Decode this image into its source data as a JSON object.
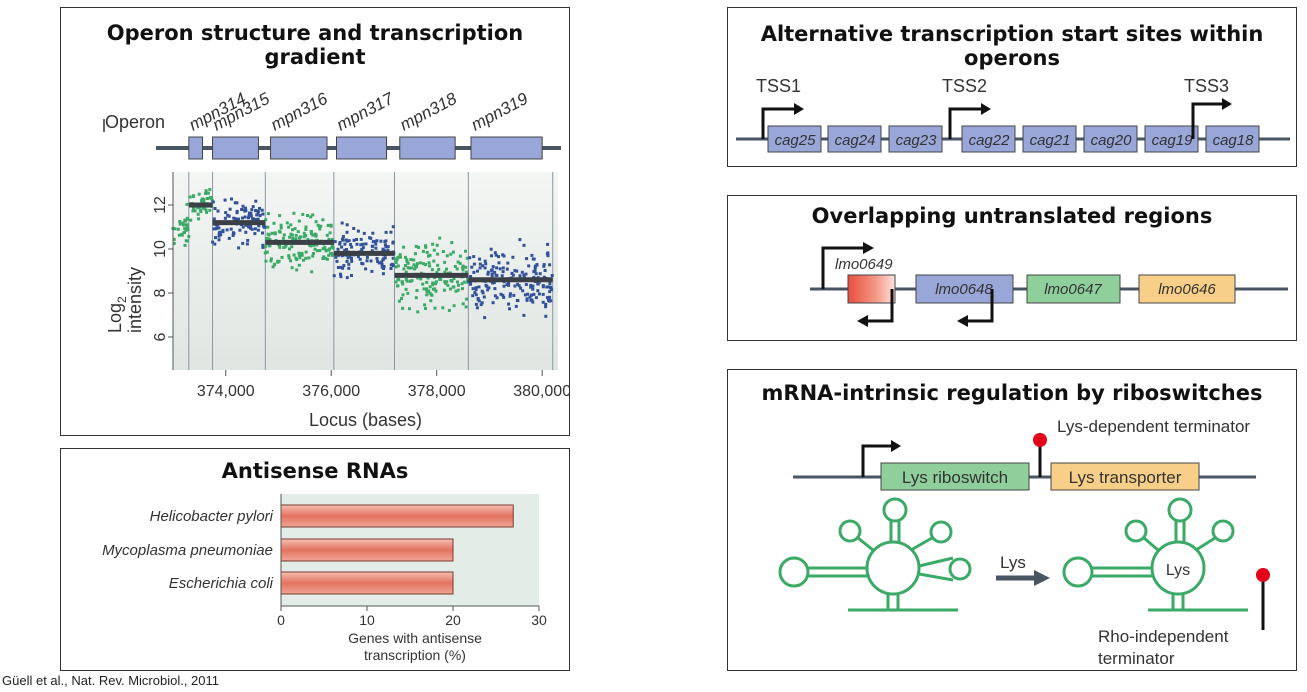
{
  "colors": {
    "gene_blue": "#99a6d8",
    "green_point": "#3aaa66",
    "blue_point": "#33519a",
    "terminator_red": "#e3001b",
    "rna_green": "#3aaa66",
    "bar_red": "#e37260",
    "gene_green": "#8fcf9b",
    "gene_orange": "#f7cf88",
    "lmo0649_red": "#e94d3e"
  },
  "operon_panel": {
    "title": "Operon structure and transcription gradient",
    "operon_label": "Operon",
    "genes": [
      "mpn314",
      "mpn315",
      "mpn316",
      "mpn317",
      "mpn318",
      "mpn319"
    ],
    "chart_data": {
      "type": "scatter",
      "xlabel": "Locus (bases)",
      "ylabel_main": "Log",
      "ylabel_sub": "2",
      "ylabel_line2": "intensity",
      "xlim": [
        373000,
        380300
      ],
      "ylim": [
        4.5,
        13.5
      ],
      "x_ticks": [
        374000,
        376000,
        378000,
        380000
      ],
      "x_tick_labels": [
        "374,000",
        "376,000",
        "378,000",
        "380,000"
      ],
      "y_ticks": [
        6,
        8,
        10,
        12
      ],
      "y_tick_labels": [
        "6",
        "8",
        "10",
        "12"
      ],
      "segment_means": [
        {
          "x_start": 373300,
          "x_end": 373750,
          "y": 12.0
        },
        {
          "x_start": 373750,
          "x_end": 374750,
          "y": 11.2
        },
        {
          "x_start": 374750,
          "x_end": 376050,
          "y": 10.3
        },
        {
          "x_start": 376050,
          "x_end": 377200,
          "y": 9.8
        },
        {
          "x_start": 377200,
          "x_end": 378600,
          "y": 8.8
        },
        {
          "x_start": 378600,
          "x_end": 380200,
          "y": 8.6
        }
      ],
      "boundaries": [
        373300,
        373750,
        374750,
        376050,
        377200,
        378600,
        380200
      ],
      "point_groups": [
        {
          "x_start": 373000,
          "x_end": 373300,
          "mean": 11.0,
          "spread": 1.3,
          "color": "green",
          "n": 30
        },
        {
          "x_start": 373300,
          "x_end": 373750,
          "mean": 12.0,
          "spread": 0.8,
          "color": "green",
          "n": 45
        },
        {
          "x_start": 373750,
          "x_end": 374750,
          "mean": 11.2,
          "spread": 1.4,
          "color": "blue",
          "n": 110
        },
        {
          "x_start": 374750,
          "x_end": 376050,
          "mean": 10.3,
          "spread": 1.6,
          "color": "green",
          "n": 150
        },
        {
          "x_start": 376050,
          "x_end": 377200,
          "mean": 9.8,
          "spread": 1.6,
          "color": "blue",
          "n": 130
        },
        {
          "x_start": 377200,
          "x_end": 378600,
          "mean": 8.8,
          "spread": 2.2,
          "color": "green",
          "n": 170
        },
        {
          "x_start": 378600,
          "x_end": 380200,
          "mean": 8.6,
          "spread": 2.0,
          "color": "blue",
          "n": 190
        }
      ]
    }
  },
  "antisense_panel": {
    "title": "Antisense RNAs",
    "chart_data": {
      "type": "bar",
      "orientation": "horizontal",
      "categories": [
        "Helicobacter pylori",
        "Mycoplasma pneumoniae",
        "Escherichia coli"
      ],
      "values": [
        27,
        20,
        20
      ],
      "xlim": [
        0,
        30
      ],
      "x_ticks": [
        0,
        10,
        20,
        30
      ],
      "xlabel_line1": "Genes with antisense",
      "xlabel_line2": "transcription (%)"
    }
  },
  "tss_panel": {
    "title": "Alternative transcription start sites within operons",
    "tss_labels": [
      "TSS1",
      "TSS2",
      "TSS3"
    ],
    "genes": [
      "cag25",
      "cag24",
      "cag23",
      "cag22",
      "cag21",
      "cag20",
      "cag19",
      "cag18"
    ]
  },
  "utr_panel": {
    "title": "Overlapping untranslated regions",
    "genes": [
      "lmo0649",
      "lmo0648",
      "lmo0647",
      "lmo0646"
    ]
  },
  "riboswitch_panel": {
    "title": "mRNA-intrinsic regulation by riboswitches",
    "terminator_label": "Lys-dependent terminator",
    "riboswitch_label": "Lys riboswitch",
    "transporter_label": "Lys transporter",
    "arrow_label": "Lys",
    "bound_label": "Lys",
    "rho_label_line1": "Rho-independent",
    "rho_label_line2": "terminator"
  },
  "citation": "Güell et al., Nat. Rev. Microbiol., 2011"
}
